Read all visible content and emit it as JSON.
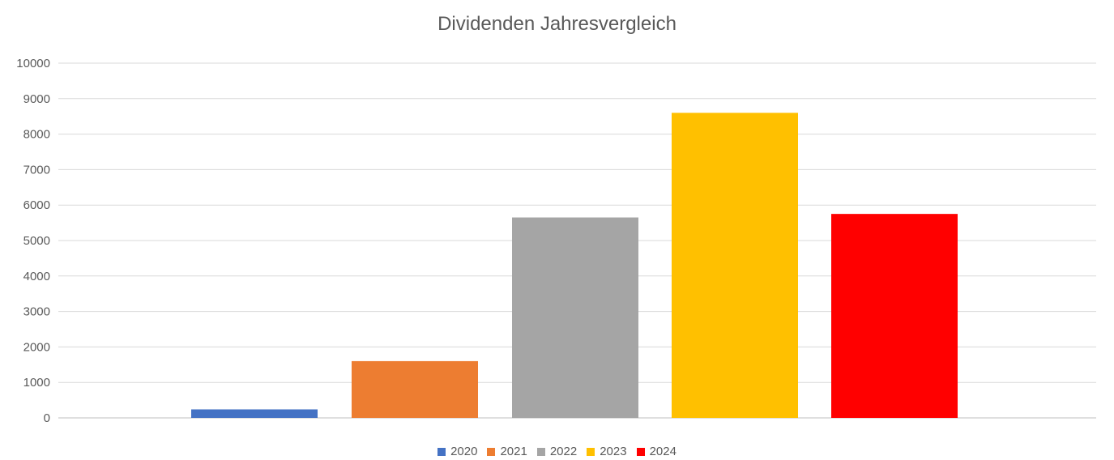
{
  "chart_data": {
    "type": "bar",
    "title": "Dividenden Jahresvergleich",
    "xlabel": "",
    "ylabel": "",
    "ylim": [
      0,
      10000
    ],
    "yticks": [
      0,
      1000,
      2000,
      3000,
      4000,
      5000,
      6000,
      7000,
      8000,
      9000,
      10000
    ],
    "grid": true,
    "legend_position": "bottom",
    "series": [
      {
        "name": "2020",
        "values": [
          240
        ],
        "color": "#4472C4"
      },
      {
        "name": "2021",
        "values": [
          1600
        ],
        "color": "#ED7D31"
      },
      {
        "name": "2022",
        "values": [
          5650
        ],
        "color": "#A5A5A5"
      },
      {
        "name": "2023",
        "values": [
          8600
        ],
        "color": "#FFC000"
      },
      {
        "name": "2024",
        "values": [
          5750
        ],
        "color": "#FF0000"
      }
    ]
  }
}
